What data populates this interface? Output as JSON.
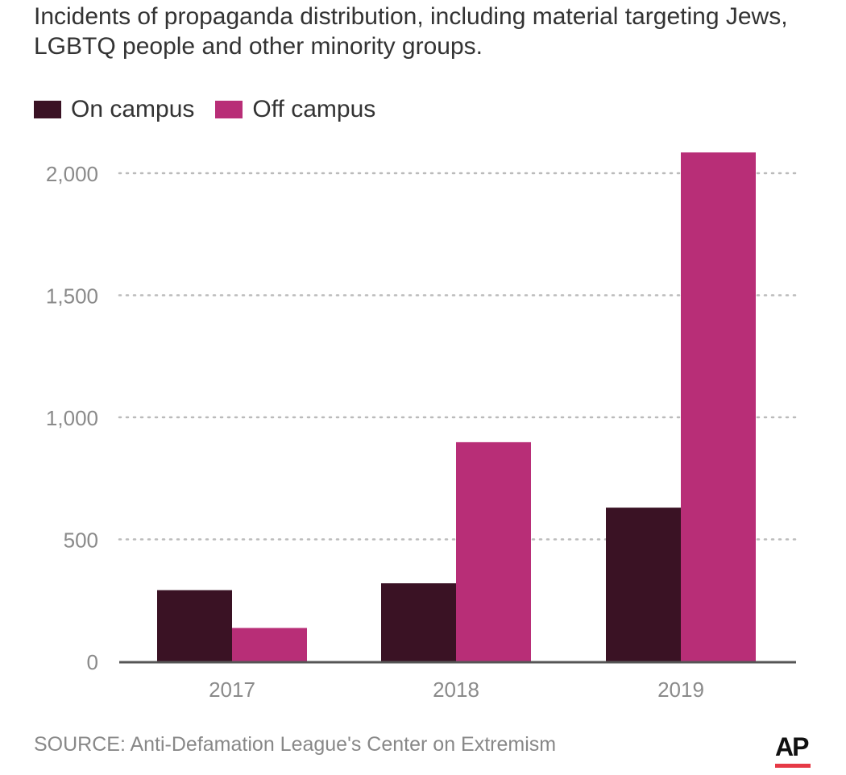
{
  "colors": {
    "on_campus": "#3a1224",
    "off_campus": "#b82e77",
    "grid": "#bbbbbb",
    "axis": "#555555",
    "tick_text": "#8a8a8a",
    "ap_red": "#e63946"
  },
  "chart_data": {
    "type": "bar",
    "title": "Incidents of propaganda distribution, including material targeting Jews, LGBTQ people and other minority groups.",
    "xlabel": "",
    "ylabel": "",
    "categories": [
      "2017",
      "2018",
      "2019"
    ],
    "series": [
      {
        "name": "On campus",
        "values": [
          292,
          320,
          630
        ]
      },
      {
        "name": "Off campus",
        "values": [
          137,
          898,
          2085
        ]
      }
    ],
    "ylim": [
      0,
      2100
    ],
    "yticks": [
      0,
      500,
      1000,
      1500,
      2000
    ],
    "ytick_labels": [
      "0",
      "500",
      "1,000",
      "1,500",
      "2,000"
    ],
    "grid": true,
    "legend_position": "top-left"
  },
  "footer": {
    "source": "SOURCE: Anti-Defamation League's Center on Extremism",
    "logo_text": "AP"
  }
}
